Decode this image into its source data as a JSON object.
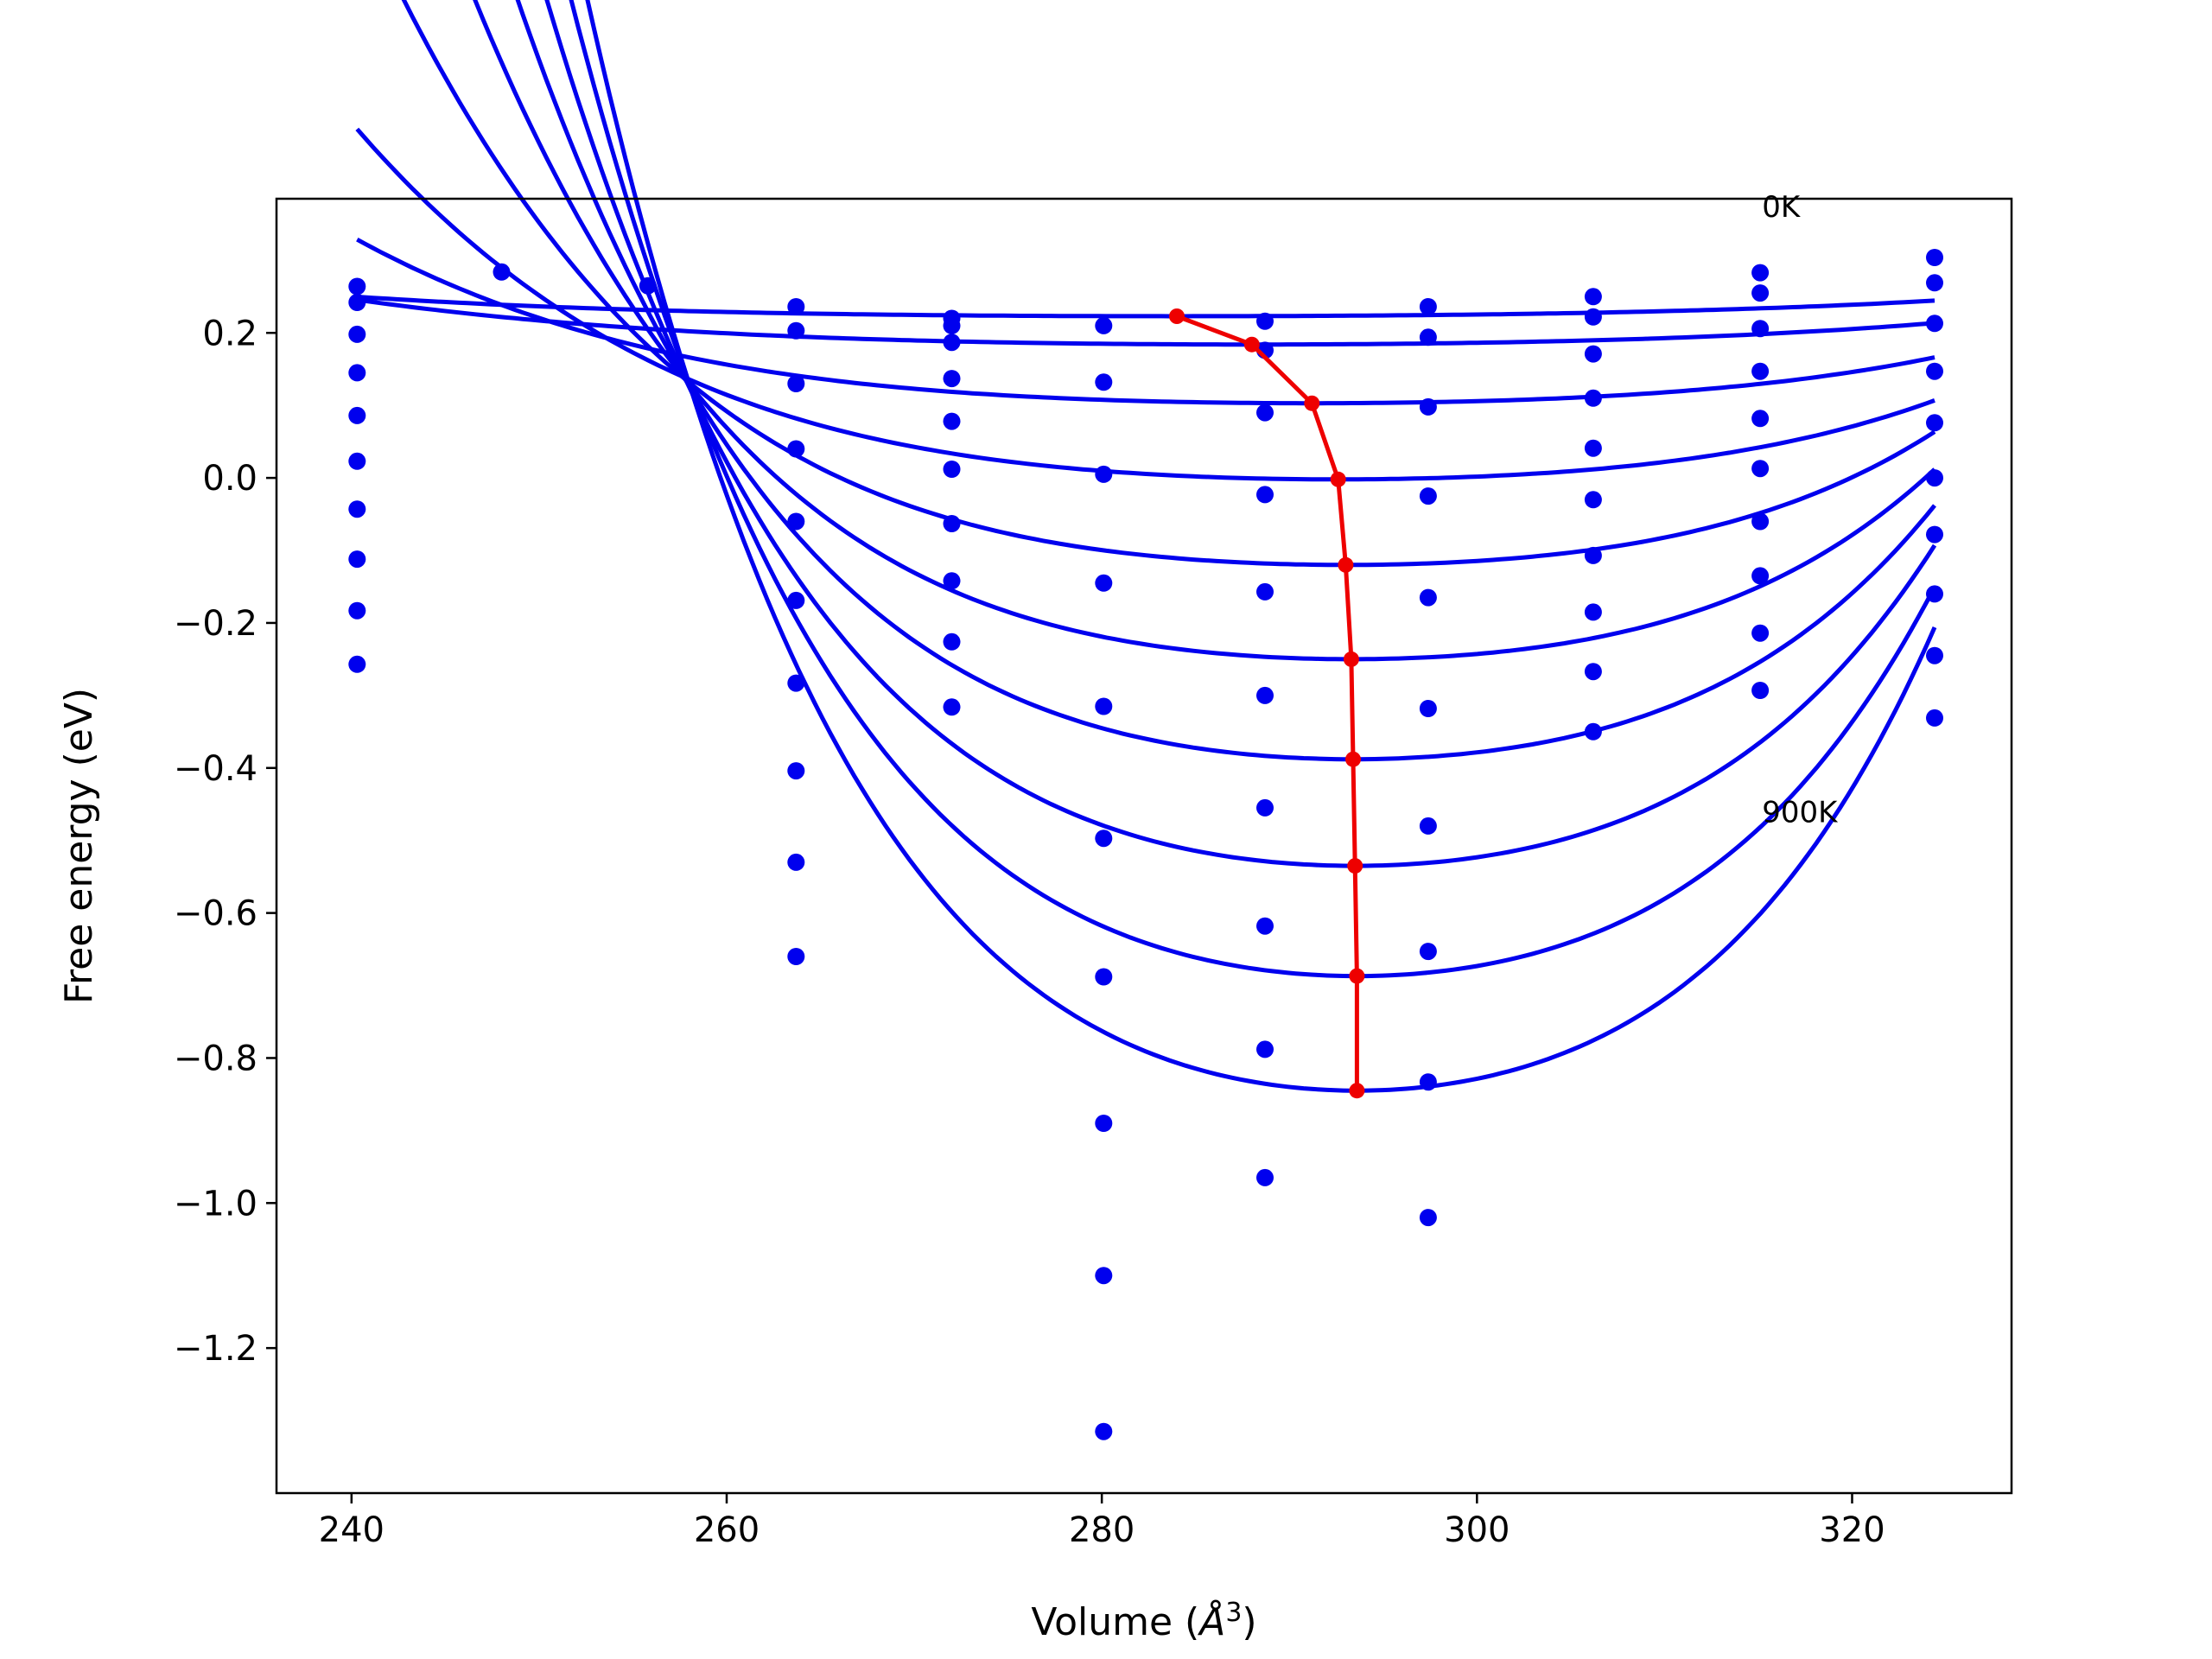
{
  "chart_data": {
    "type": "line",
    "xlabel": "Volume (",
    "xlabel_symbol": "Å",
    "xlabel_exponent": "3",
    "xlabel_close": ")",
    "ylabel": "Free energy (eV)",
    "xlim": [
      236,
      328.5
    ],
    "ylim": [
      -1.4,
      0.385
    ],
    "xticks": [
      240,
      260,
      280,
      300,
      320
    ],
    "xtick_labels": [
      "240",
      "260",
      "280",
      "300",
      "320"
    ],
    "yticks": [
      0.2,
      0.0,
      -0.2,
      -0.4,
      -0.6,
      -0.8,
      -1.0,
      -1.2
    ],
    "ytick_labels": [
      "0.2",
      "0.0",
      "−0.2",
      "−0.4",
      "−0.6",
      "−0.8",
      "−1.0",
      "−1.2"
    ],
    "grid": false,
    "annotations": [
      {
        "text": "0K",
        "x": 315.2,
        "y": 0.36
      },
      {
        "text": "900K",
        "x": 315.2,
        "y": -0.475
      }
    ],
    "colors": {
      "points": "#0000ee",
      "fits": "#0000ee",
      "minimum_path": "#ee0000"
    },
    "scatter_volumes": [
      240.3,
      248,
      255.8,
      263.7,
      272,
      280.1,
      288.7,
      297.4,
      306.2,
      315.1,
      324.4
    ],
    "scatter_energies": [
      [
        0.264,
        0.242,
        0.198,
        0.145,
        0.086,
        0.023,
        -0.043,
        -0.112,
        -0.183,
        -0.257
      ],
      [
        0.284
      ],
      [
        0.265
      ],
      [
        0.236,
        0.203,
        0.13,
        0.04,
        -0.06,
        -0.169,
        -0.283,
        -0.404,
        -0.53,
        -0.66
      ],
      [
        0.22,
        0.21,
        0.187,
        0.137,
        0.078,
        0.012,
        -0.063,
        -0.142,
        -0.226,
        -0.316
      ],
      [
        0.21,
        0.132,
        0.005,
        -0.145,
        -0.315,
        -0.497,
        -0.688,
        -0.89,
        -1.1,
        -1.315
      ],
      [
        0.216,
        0.176,
        0.09,
        -0.023,
        -0.157,
        -0.3,
        -0.455,
        -0.618,
        -0.788,
        -0.965
      ],
      [
        0.236,
        0.194,
        0.098,
        -0.025,
        -0.165,
        -0.318,
        -0.48,
        -0.653,
        -0.833,
        -1.02
      ],
      [
        0.25,
        0.222,
        0.171,
        0.11,
        0.041,
        -0.03,
        -0.107,
        -0.185,
        -0.267,
        -0.35
      ],
      [
        0.283,
        0.255,
        0.206,
        0.147,
        0.082,
        0.013,
        -0.06,
        -0.135,
        -0.214,
        -0.293
      ],
      [
        0.304,
        0.269,
        0.213,
        0.147,
        0.076,
        0.0,
        -0.078,
        -0.16,
        -0.245,
        -0.331
      ]
    ],
    "fit_x_range": [
      240.3,
      324.4
    ],
    "fit_curves": [
      {
        "v_min": 284.0,
        "e_min": 0.223,
        "a": 8.3e-06,
        "b": 3e-09
      },
      {
        "v_min": 288.0,
        "e_min": 0.184,
        "a": 1.57e-05,
        "b": 5e-09
      },
      {
        "v_min": 291.2,
        "e_min": 0.103,
        "a": 3.53e-05,
        "b": 2e-08
      },
      {
        "v_min": 292.6,
        "e_min": -0.002,
        "a": 6.72e-05,
        "b": 4e-08
      },
      {
        "v_min": 293.0,
        "e_min": -0.12,
        "a": 0.0001074,
        "b": 8e-08
      },
      {
        "v_min": 293.3,
        "e_min": -0.25,
        "a": 0.0001547,
        "b": 1.2e-07
      },
      {
        "v_min": 293.4,
        "e_min": -0.388,
        "a": 0.0002105,
        "b": 1.6e-07
      },
      {
        "v_min": 293.5,
        "e_min": -0.535,
        "a": 0.000272,
        "b": 2e-07
      },
      {
        "v_min": 293.6,
        "e_min": -0.687,
        "a": 0.0003285,
        "b": 2.5e-07
      },
      {
        "v_min": 293.6,
        "e_min": -0.845,
        "a": 0.000389,
        "b": 3e-07
      }
    ],
    "minimum_path": {
      "x": [
        284.0,
        288.0,
        291.2,
        292.6,
        293.0,
        293.3,
        293.4,
        293.5,
        293.6,
        293.6
      ],
      "y": [
        0.223,
        0.184,
        0.103,
        -0.002,
        -0.12,
        -0.25,
        -0.388,
        -0.535,
        -0.687,
        -0.845
      ]
    }
  }
}
